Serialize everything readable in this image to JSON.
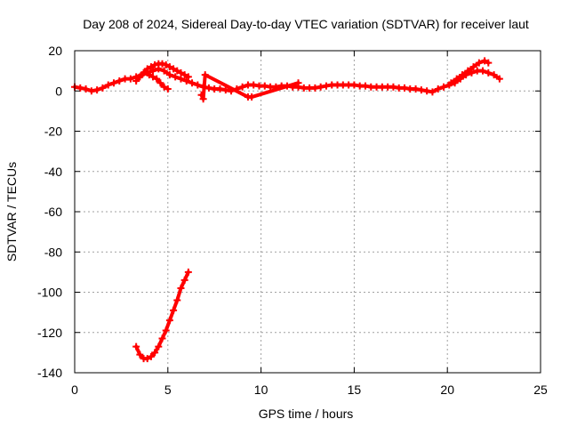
{
  "chart_data": {
    "type": "scatter",
    "title": "Day 208 of 2024, Sidereal Day-to-day VTEC variation (SDTVAR) for receiver laut",
    "xlabel": "GPS time / hours",
    "ylabel": "SDTVAR / TECUs",
    "xlim": [
      0,
      25
    ],
    "ylim": [
      -140,
      20
    ],
    "xticks": [
      0,
      5,
      10,
      15,
      20,
      25
    ],
    "yticks": [
      20,
      0,
      -20,
      -40,
      -60,
      -80,
      -100,
      -120,
      -140
    ],
    "grid": true,
    "marker": "plus",
    "color": "#ff0000",
    "series": [
      {
        "name": "main-band",
        "x": [
          0,
          0.3,
          0.6,
          0.9,
          1.2,
          1.5,
          1.8,
          2.1,
          2.4,
          2.7,
          3.0,
          3.3,
          3.6,
          3.9,
          4.2,
          4.5,
          4.8,
          5.1,
          5.4,
          5.7,
          6.0,
          6.3,
          6.6,
          6.9,
          7.2,
          7.5,
          7.8,
          8.1,
          8.4,
          8.7,
          9.0,
          9.3,
          9.6,
          9.9,
          10.2,
          10.5,
          10.8,
          11.1,
          11.4,
          11.7,
          12.0,
          12.3,
          12.6,
          12.9,
          13.2,
          13.5,
          13.8,
          14.1,
          14.4,
          14.7,
          15.0,
          15.3,
          15.6,
          15.9,
          16.2,
          16.5,
          16.8,
          17.1,
          17.4,
          17.7,
          18.0,
          18.3,
          18.6,
          18.9,
          19.2,
          19.5,
          19.8,
          20.1,
          20.4,
          20.7,
          21.0,
          21.3,
          21.6,
          21.9,
          22.2,
          22.5,
          22.8
        ],
        "y": [
          2,
          1.5,
          1,
          0,
          0.5,
          1.5,
          3,
          4,
          5,
          6,
          6,
          7,
          8,
          9,
          10,
          11,
          10,
          8,
          7,
          6,
          5,
          4,
          3,
          2,
          1.5,
          1,
          1,
          0.5,
          0,
          1,
          2,
          3,
          3,
          2.5,
          2.5,
          2,
          2,
          2.5,
          2.5,
          2,
          2,
          1.5,
          1.5,
          1.5,
          2,
          2.5,
          3,
          3,
          3,
          3,
          3,
          2.5,
          2.5,
          2,
          2,
          2,
          2,
          2,
          1.5,
          1.5,
          1,
          1,
          0.5,
          0,
          -0.5,
          1,
          2,
          3,
          4,
          6,
          8,
          9,
          10,
          10,
          9,
          8,
          6
        ]
      },
      {
        "name": "upper-arc",
        "x": [
          3.3,
          3.5,
          3.7,
          3.9,
          4.1,
          4.3,
          4.5,
          4.7,
          4.9,
          5.1,
          5.3,
          5.5,
          5.7,
          5.9,
          6.1
        ],
        "y": [
          5,
          7,
          9,
          11,
          12,
          13,
          13.5,
          13.5,
          13,
          12,
          11,
          10,
          9,
          8,
          7
        ]
      },
      {
        "name": "lower-arc",
        "x": [
          4.0,
          4.2,
          4.4,
          4.6,
          4.8,
          5.0
        ],
        "y": [
          8,
          7,
          6,
          4,
          2,
          1
        ]
      },
      {
        "name": "upper-right-arc",
        "x": [
          20.2,
          20.5,
          20.8,
          21.1,
          21.4,
          21.7,
          22.0,
          22.2
        ],
        "y": [
          4,
          6,
          8,
          10,
          12,
          14,
          15,
          14
        ]
      },
      {
        "name": "spikes",
        "x": [
          6.8,
          6.9,
          7.0,
          9.3,
          9.5,
          12.0
        ],
        "y": [
          -2,
          -4,
          8,
          -3,
          -3,
          4
        ]
      },
      {
        "name": "deep-excursion",
        "x": [
          3.3,
          3.5,
          3.7,
          3.9,
          4.1,
          4.3,
          4.5,
          4.7,
          4.9,
          5.1,
          5.3,
          5.5,
          5.7,
          5.9,
          6.1
        ],
        "y": [
          -127,
          -131,
          -133,
          -133,
          -132,
          -130,
          -127,
          -123,
          -119,
          -114,
          -109,
          -104,
          -98,
          -94,
          -90
        ]
      }
    ]
  }
}
